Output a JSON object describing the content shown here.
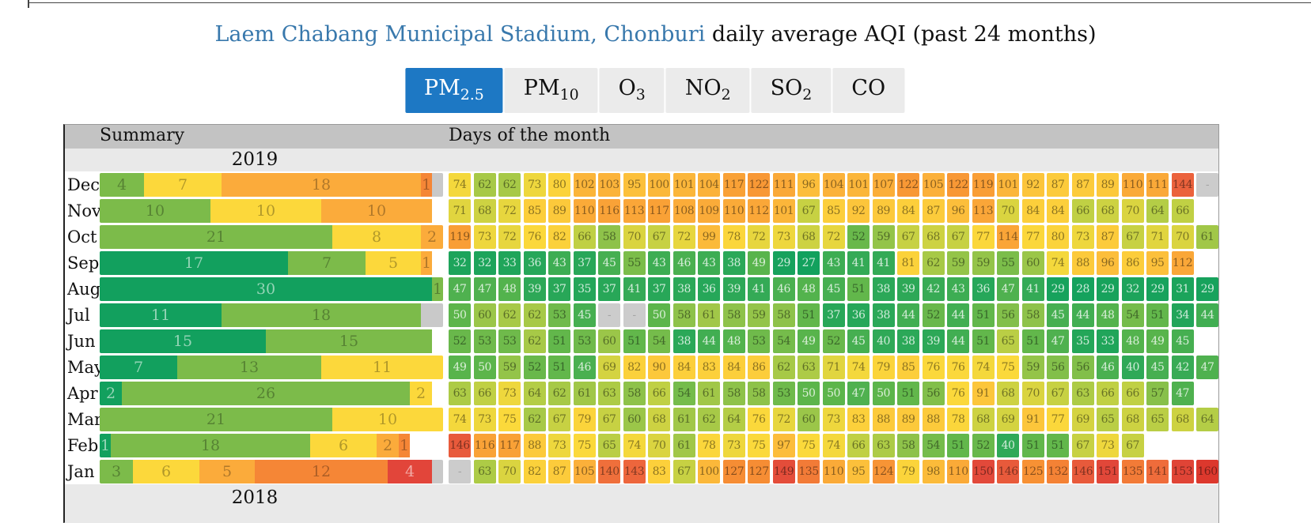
{
  "title": {
    "link_text": "Laem Chabang Municipal Stadium, Chonburi",
    "plain_text": " daily average AQI (past 24 months)"
  },
  "tabs": [
    {
      "id": "pm25",
      "main": "PM",
      "sub": "2.5",
      "active": true
    },
    {
      "id": "pm10",
      "main": "PM",
      "sub": "10",
      "active": false
    },
    {
      "id": "o3",
      "main": "O",
      "sub": "3",
      "active": false
    },
    {
      "id": "no2",
      "main": "NO",
      "sub": "2",
      "active": false
    },
    {
      "id": "so2",
      "main": "SO",
      "sub": "2",
      "active": false
    },
    {
      "id": "co",
      "main": "CO",
      "sub": "",
      "active": false
    }
  ],
  "table": {
    "summary_header": "Summary",
    "days_header": "Days of the month",
    "year_top": "2019",
    "year_bottom": "2018",
    "months": [
      {
        "label": "Dec",
        "summary": [
          {
            "band": "moderate_low",
            "count": 4
          },
          {
            "band": "moderate",
            "count": 7
          },
          {
            "band": "usg_low",
            "count": 18
          },
          {
            "band": "usg",
            "count": 1
          },
          {
            "band": "na",
            "count": 1
          }
        ],
        "days": [
          74,
          62,
          62,
          73,
          80,
          102,
          103,
          95,
          100,
          101,
          104,
          117,
          122,
          111,
          96,
          104,
          101,
          107,
          122,
          105,
          122,
          119,
          101,
          92,
          87,
          87,
          89,
          110,
          111,
          144,
          "-"
        ]
      },
      {
        "label": "Nov",
        "summary": [
          {
            "band": "moderate_low",
            "count": 10
          },
          {
            "band": "moderate",
            "count": 10
          },
          {
            "band": "usg_low",
            "count": 10
          }
        ],
        "days": [
          71,
          68,
          72,
          85,
          89,
          110,
          116,
          113,
          117,
          108,
          109,
          110,
          112,
          101,
          67,
          85,
          92,
          89,
          84,
          87,
          96,
          113,
          70,
          84,
          84,
          66,
          68,
          70,
          64,
          66
        ]
      },
      {
        "label": "Oct",
        "summary": [
          {
            "band": "moderate_low",
            "count": 21
          },
          {
            "band": "moderate",
            "count": 8
          },
          {
            "band": "usg_low",
            "count": 2
          }
        ],
        "days": [
          119,
          73,
          72,
          76,
          82,
          66,
          58,
          70,
          67,
          72,
          99,
          78,
          72,
          73,
          68,
          72,
          52,
          59,
          67,
          68,
          67,
          77,
          114,
          77,
          80,
          73,
          87,
          67,
          71,
          70,
          61
        ]
      },
      {
        "label": "Sep",
        "summary": [
          {
            "band": "good",
            "count": 17
          },
          {
            "band": "moderate_low",
            "count": 7
          },
          {
            "band": "moderate",
            "count": 5
          },
          {
            "band": "usg_low",
            "count": 1
          }
        ],
        "days": [
          32,
          32,
          33,
          36,
          43,
          37,
          45,
          55,
          43,
          46,
          43,
          38,
          49,
          29,
          27,
          43,
          41,
          41,
          81,
          62,
          59,
          59,
          55,
          60,
          74,
          88,
          96,
          86,
          95,
          112
        ]
      },
      {
        "label": "Aug",
        "summary": [
          {
            "band": "good",
            "count": 30
          },
          {
            "band": "moderate_low",
            "count": 1
          }
        ],
        "days": [
          47,
          47,
          48,
          39,
          37,
          35,
          37,
          41,
          37,
          38,
          36,
          39,
          41,
          46,
          48,
          45,
          51,
          38,
          39,
          42,
          43,
          36,
          47,
          41,
          29,
          28,
          29,
          32,
          29,
          31,
          29
        ]
      },
      {
        "label": "Jul",
        "summary": [
          {
            "band": "good",
            "count": 11
          },
          {
            "band": "moderate_low",
            "count": 18
          },
          {
            "band": "na",
            "count": 2
          }
        ],
        "days": [
          50,
          60,
          62,
          62,
          53,
          45,
          "-",
          "-",
          50,
          58,
          61,
          58,
          59,
          58,
          51,
          37,
          36,
          38,
          44,
          52,
          44,
          51,
          56,
          58,
          45,
          44,
          48,
          54,
          51,
          34,
          44
        ]
      },
      {
        "label": "Jun",
        "summary": [
          {
            "band": "good",
            "count": 15
          },
          {
            "band": "moderate_low",
            "count": 15
          }
        ],
        "days": [
          52,
          53,
          53,
          62,
          51,
          53,
          60,
          51,
          54,
          38,
          44,
          48,
          53,
          54,
          49,
          52,
          45,
          40,
          38,
          39,
          44,
          51,
          65,
          51,
          47,
          35,
          33,
          48,
          49,
          45
        ]
      },
      {
        "label": "May",
        "summary": [
          {
            "band": "good",
            "count": 7
          },
          {
            "band": "moderate_low",
            "count": 13
          },
          {
            "band": "moderate",
            "count": 11
          }
        ],
        "days": [
          49,
          50,
          59,
          52,
          51,
          46,
          69,
          82,
          90,
          84,
          83,
          84,
          86,
          62,
          63,
          71,
          74,
          79,
          85,
          76,
          76,
          74,
          75,
          59,
          56,
          56,
          46,
          40,
          45,
          42,
          47
        ]
      },
      {
        "label": "Apr",
        "summary": [
          {
            "band": "good",
            "count": 2
          },
          {
            "band": "moderate_low",
            "count": 26
          },
          {
            "band": "moderate",
            "count": 2
          }
        ],
        "days": [
          63,
          66,
          73,
          64,
          62,
          61,
          63,
          58,
          66,
          54,
          61,
          58,
          58,
          53,
          50,
          50,
          47,
          50,
          51,
          56,
          76,
          91,
          68,
          70,
          67,
          63,
          66,
          66,
          57,
          47
        ]
      },
      {
        "label": "Mar",
        "summary": [
          {
            "band": "moderate_low",
            "count": 21
          },
          {
            "band": "moderate",
            "count": 10
          }
        ],
        "days": [
          74,
          73,
          75,
          62,
          67,
          79,
          67,
          60,
          68,
          61,
          62,
          64,
          76,
          72,
          60,
          73,
          83,
          88,
          89,
          88,
          78,
          68,
          69,
          91,
          77,
          69,
          65,
          68,
          65,
          68,
          64
        ]
      },
      {
        "label": "Feb",
        "summary": [
          {
            "band": "good",
            "count": 1
          },
          {
            "band": "moderate_low",
            "count": 18
          },
          {
            "band": "moderate",
            "count": 6
          },
          {
            "band": "usg_low",
            "count": 2
          },
          {
            "band": "usg",
            "count": 1
          }
        ],
        "days": [
          146,
          116,
          117,
          88,
          73,
          75,
          65,
          74,
          70,
          61,
          78,
          73,
          75,
          97,
          75,
          74,
          66,
          63,
          58,
          54,
          51,
          52,
          40,
          51,
          51,
          67,
          73,
          67
        ]
      },
      {
        "label": "Jan",
        "summary": [
          {
            "band": "moderate_low",
            "count": 3
          },
          {
            "band": "moderate",
            "count": 6
          },
          {
            "band": "usg_low",
            "count": 5
          },
          {
            "band": "usg",
            "count": 12
          },
          {
            "band": "unhealthy",
            "count": 4
          },
          {
            "band": "na",
            "count": 1
          }
        ],
        "days": [
          "-",
          63,
          70,
          82,
          87,
          105,
          140,
          143,
          83,
          67,
          100,
          127,
          127,
          149,
          135,
          110,
          95,
          124,
          79,
          98,
          110,
          150,
          146,
          125,
          132,
          146,
          151,
          135,
          141,
          153,
          160
        ]
      }
    ]
  },
  "colors": {
    "tab_active_bg": "#1d78c4",
    "tab_inactive_bg": "#ebebeb",
    "link_blue": "#3878ac",
    "header_bg": "#c3c3c3",
    "year_bg": "#e9e9e9",
    "missing_cell": "#cccccc",
    "bands": {
      "good": "#12a05e",
      "moderate_low": "#7cbb4a",
      "moderate": "#fcd83b",
      "usg_low": "#fbab3b",
      "usg": "#f58636",
      "unhealthy": "#e2453a",
      "na": "#c9c9c9"
    },
    "cell_gradient": [
      [
        25,
        "#0ea05e"
      ],
      [
        40,
        "#2fa957"
      ],
      [
        50,
        "#5cb54b"
      ],
      [
        58,
        "#8ec24a"
      ],
      [
        66,
        "#c0d044"
      ],
      [
        75,
        "#fbd93b"
      ],
      [
        90,
        "#fcc83b"
      ],
      [
        105,
        "#fbb03a"
      ],
      [
        118,
        "#f9a036"
      ],
      [
        130,
        "#f58733"
      ],
      [
        142,
        "#ee6a3c"
      ],
      [
        150,
        "#e2493a"
      ],
      [
        165,
        "#d92f27"
      ]
    ]
  }
}
